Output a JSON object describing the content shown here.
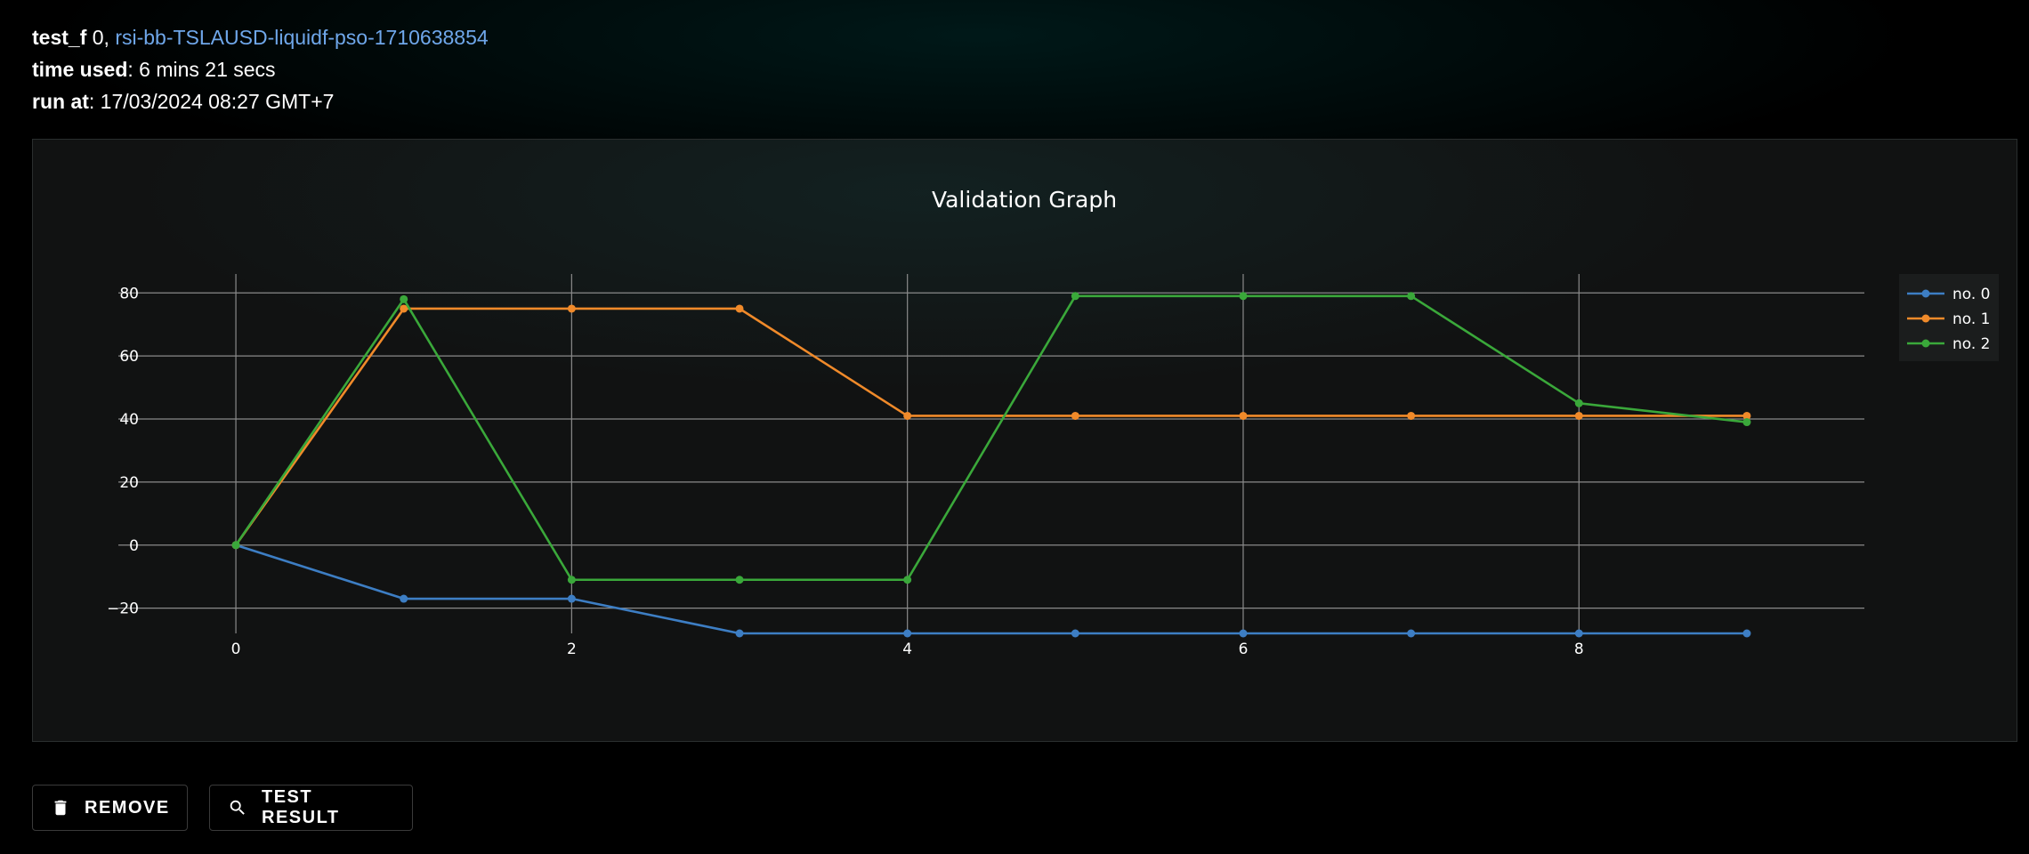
{
  "header": {
    "test_label": "test_f",
    "test_index": "0,",
    "run_link": "rsi-bb-TSLAUSD-liquidf-pso-1710638854",
    "time_label": "time used",
    "time_value": ": 6 mins 21 secs",
    "run_label": "run at",
    "run_value": ": 17/03/2024 08:27 GMT+7"
  },
  "actions": {
    "remove_label": "REMOVE",
    "test_result_label": "TEST RESULT"
  },
  "icons": {
    "remove": "trash-icon",
    "test_result": "search-icon"
  },
  "chart_data": {
    "type": "line",
    "title": "Validation Graph",
    "xlabel": "",
    "ylabel": "",
    "x": [
      0,
      1,
      2,
      3,
      4,
      5,
      6,
      7,
      8,
      9
    ],
    "xlim": [
      -0.7,
      9.7
    ],
    "ylim": [
      -28,
      86
    ],
    "xticks": [
      0,
      2,
      4,
      6,
      8
    ],
    "yticks": [
      -20,
      0,
      20,
      40,
      60,
      80
    ],
    "grid": true,
    "legend_position": "top-right",
    "series": [
      {
        "name": "no. 0",
        "color": "#3d7ec4",
        "values": [
          0,
          -17,
          -17,
          -28,
          -28,
          -28,
          -28,
          -28,
          -28,
          -28
        ]
      },
      {
        "name": "no. 1",
        "color": "#f08a2a",
        "values": [
          0,
          75,
          75,
          75,
          41,
          41,
          41,
          41,
          41,
          41
        ]
      },
      {
        "name": "no. 2",
        "color": "#3aa83a",
        "values": [
          0,
          78,
          -11,
          -11,
          -11,
          79,
          79,
          79,
          45,
          39
        ]
      }
    ]
  }
}
